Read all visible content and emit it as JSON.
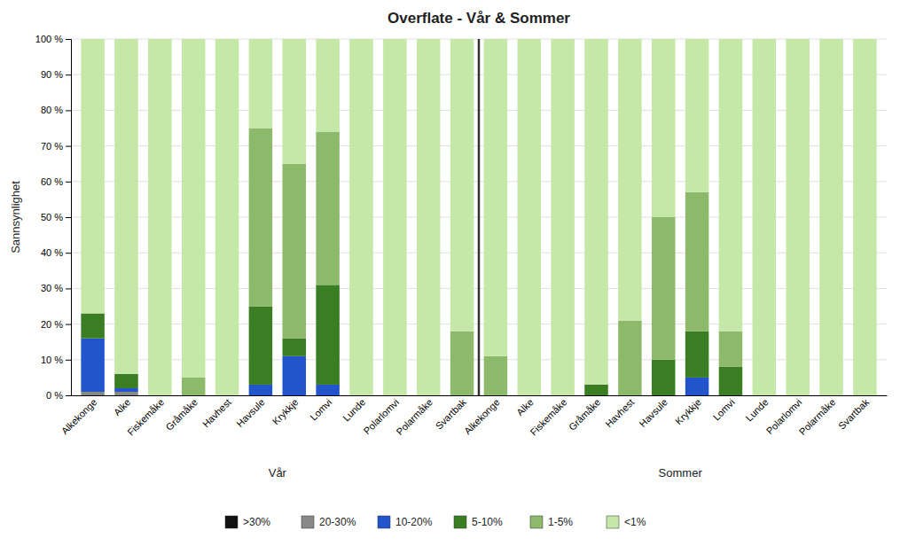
{
  "chart_data": {
    "type": "bar",
    "stacked": true,
    "title": "Overflate - Vår & Sommer",
    "y_label": "Sannsynlighet",
    "annotations": [
      "Vår",
      "Sommer"
    ],
    "categories": [
      "Alkekonge",
      "Alke",
      "Fiskemåke",
      "Grå­måke",
      "Havhest",
      "Havsule",
      "Krykkje",
      "Lomvi",
      "Lunde",
      "Polarlomvi",
      "Polarmåke",
      "Svartbak",
      "Alkekonge",
      "Alke",
      "Fiskemåke",
      "Grå­måke",
      "Havhest",
      "Havsule",
      "Krykkje",
      "Lomvi",
      "Lunde",
      "Polarlomvi",
      "Polarmåke",
      "Svartbak"
    ],
    "series": [
      {
        "name": ">30%",
        "color": "#111111",
        "values": [
          0,
          0,
          0,
          0,
          0,
          0,
          0,
          0,
          0,
          0,
          0,
          0,
          0,
          0,
          0,
          0,
          0,
          0,
          0,
          0,
          0,
          0,
          0,
          0
        ]
      },
      {
        "name": "20-30%",
        "color": "#888888",
        "values": [
          1,
          1,
          0,
          0,
          0,
          0,
          0,
          0,
          0,
          0,
          0,
          0,
          0,
          0,
          0,
          0,
          0,
          0,
          0,
          0,
          0,
          0,
          0,
          0
        ]
      },
      {
        "name": "10-20%",
        "color": "#2255cc",
        "values": [
          15,
          1,
          0,
          0,
          0,
          3,
          11,
          3,
          0,
          0,
          0,
          0,
          0,
          0,
          0,
          0,
          0,
          0,
          5,
          0,
          0,
          0,
          0,
          0
        ]
      },
      {
        "name": "5-10%",
        "color": "#3a7d23",
        "values": [
          7,
          4,
          0,
          0,
          0,
          22,
          5,
          28,
          0,
          0,
          0,
          0,
          0,
          0,
          0,
          3,
          0,
          10,
          13,
          8,
          0,
          0,
          0,
          0
        ]
      },
      {
        "name": "1-5%",
        "color": "#8dba6a",
        "values": [
          0,
          0,
          0,
          5,
          0,
          50,
          49,
          43,
          0,
          0,
          0,
          18,
          11,
          0,
          0,
          0,
          21,
          40,
          39,
          10,
          0,
          0,
          0,
          0
        ]
      },
      {
        "name": "<1%",
        "color": "#c5e8a8",
        "values": [
          77,
          94,
          100,
          95,
          100,
          25,
          35,
          26,
          100,
          100,
          100,
          82,
          89,
          100,
          100,
          97,
          79,
          50,
          43,
          82,
          100,
          100,
          100,
          100
        ]
      }
    ],
    "ylim": [
      0,
      100
    ],
    "yticks": [
      {
        "value": 0,
        "label": "0 %"
      },
      {
        "value": 10,
        "label": "10 %"
      },
      {
        "value": 20,
        "label": "20 %"
      },
      {
        "value": 30,
        "label": "30 %"
      },
      {
        "value": 40,
        "label": "40 %"
      },
      {
        "value": 50,
        "label": "50 %"
      },
      {
        "value": 60,
        "label": "60 %"
      },
      {
        "value": 70,
        "label": "70 %"
      },
      {
        "value": 80,
        "label": "80 %"
      },
      {
        "value": 90,
        "label": "90 %"
      },
      {
        "value": 100,
        "label": "100 %"
      }
    ],
    "grid": true,
    "legend": "bottom"
  }
}
